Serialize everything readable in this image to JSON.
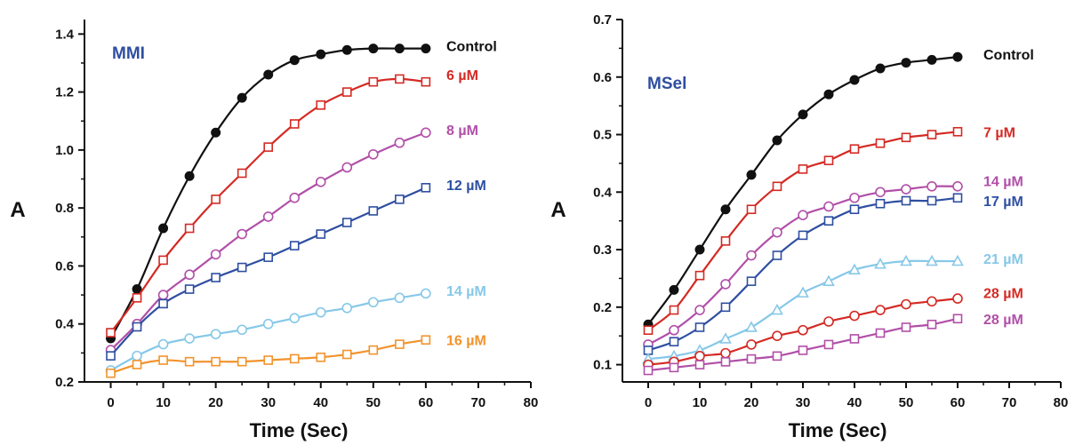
{
  "chart_data": [
    {
      "type": "line",
      "title": "",
      "panel_label": "MMI",
      "panel_label_color": "#2e4ea1",
      "xlabel": "Time (Sec)",
      "ylabel": "A",
      "xlim": [
        -5,
        80
      ],
      "ylim": [
        0.2,
        1.45
      ],
      "xticks": [
        0,
        10,
        20,
        30,
        40,
        50,
        60,
        70,
        80
      ],
      "yticks": [
        0.2,
        0.4,
        0.6,
        0.8,
        1.0,
        1.2,
        1.4
      ],
      "ytick_labels": [
        "0.2",
        "0.4",
        "0.6",
        "0.8",
        "1.0",
        "1.2",
        "1.4"
      ],
      "grid": false,
      "x": [
        0,
        5,
        10,
        15,
        20,
        25,
        30,
        35,
        40,
        45,
        50,
        55,
        60
      ],
      "series": [
        {
          "name": "Control",
          "color": "#111111",
          "marker": "filled-circle",
          "label_y": 1.36,
          "values": [
            0.35,
            0.52,
            0.73,
            0.91,
            1.06,
            1.18,
            1.26,
            1.31,
            1.33,
            1.345,
            1.35,
            1.35,
            1.35
          ]
        },
        {
          "name": "6 µM",
          "color": "#d42a24",
          "marker": "open-square",
          "label_y": 1.26,
          "values": [
            0.37,
            0.49,
            0.62,
            0.73,
            0.83,
            0.92,
            1.01,
            1.09,
            1.155,
            1.2,
            1.235,
            1.245,
            1.235
          ]
        },
        {
          "name": "8 µM",
          "color": "#b14fa8",
          "marker": "open-circle",
          "label_y": 1.07,
          "values": [
            0.31,
            0.4,
            0.5,
            0.57,
            0.64,
            0.71,
            0.77,
            0.835,
            0.89,
            0.94,
            0.985,
            1.025,
            1.06
          ]
        },
        {
          "name": "12 µM",
          "color": "#2e4ea1",
          "marker": "open-square",
          "label_y": 0.88,
          "values": [
            0.29,
            0.39,
            0.47,
            0.52,
            0.56,
            0.595,
            0.63,
            0.67,
            0.71,
            0.75,
            0.79,
            0.83,
            0.87
          ]
        },
        {
          "name": "14 µM",
          "color": "#86c8e8",
          "marker": "open-circle",
          "label_y": 0.515,
          "values": [
            0.24,
            0.29,
            0.33,
            0.35,
            0.365,
            0.38,
            0.4,
            0.42,
            0.44,
            0.455,
            0.475,
            0.49,
            0.505
          ]
        },
        {
          "name": "16 µM",
          "color": "#f2932c",
          "marker": "open-square",
          "label_y": 0.345,
          "values": [
            0.23,
            0.26,
            0.275,
            0.27,
            0.27,
            0.27,
            0.275,
            0.28,
            0.285,
            0.295,
            0.31,
            0.33,
            0.345
          ]
        }
      ]
    },
    {
      "type": "line",
      "title": "",
      "panel_label": "MSel",
      "panel_label_color": "#2e4ea1",
      "xlabel": "Time (Sec)",
      "ylabel": "A",
      "xlim": [
        -5,
        80
      ],
      "ylim": [
        0.07,
        0.7
      ],
      "xticks": [
        0,
        10,
        20,
        30,
        40,
        50,
        60,
        70,
        80
      ],
      "yticks": [
        0.1,
        0.2,
        0.3,
        0.4,
        0.5,
        0.6,
        0.7
      ],
      "ytick_labels": [
        "0.1",
        "0.2",
        "0.3",
        "0.4",
        "0.5",
        "0.6",
        "0.7"
      ],
      "grid": false,
      "x": [
        0,
        5,
        10,
        15,
        20,
        25,
        30,
        35,
        40,
        45,
        50,
        55,
        60
      ],
      "series": [
        {
          "name": "Control",
          "color": "#111111",
          "marker": "filled-circle",
          "label_y": 0.64,
          "values": [
            0.17,
            0.23,
            0.3,
            0.37,
            0.43,
            0.49,
            0.535,
            0.57,
            0.595,
            0.615,
            0.625,
            0.63,
            0.635
          ]
        },
        {
          "name": "7 µM",
          "color": "#d42a24",
          "marker": "open-square",
          "label_y": 0.505,
          "values": [
            0.16,
            0.195,
            0.255,
            0.315,
            0.37,
            0.41,
            0.44,
            0.455,
            0.475,
            0.485,
            0.495,
            0.5,
            0.505
          ]
        },
        {
          "name": "14 µM",
          "color": "#b14fa8",
          "marker": "open-circle",
          "label_y": 0.42,
          "values": [
            0.135,
            0.16,
            0.195,
            0.24,
            0.29,
            0.33,
            0.36,
            0.375,
            0.39,
            0.4,
            0.405,
            0.41,
            0.41
          ]
        },
        {
          "name": "17 µM",
          "color": "#2e4ea1",
          "marker": "open-square",
          "label_y": 0.385,
          "values": [
            0.125,
            0.14,
            0.165,
            0.2,
            0.245,
            0.29,
            0.325,
            0.35,
            0.37,
            0.38,
            0.385,
            0.385,
            0.39
          ]
        },
        {
          "name": "21 µM",
          "color": "#86c8e8",
          "marker": "open-triangle",
          "label_y": 0.285,
          "values": [
            0.11,
            0.115,
            0.125,
            0.145,
            0.165,
            0.195,
            0.225,
            0.245,
            0.265,
            0.275,
            0.28,
            0.28,
            0.28
          ]
        },
        {
          "name": "28 µM",
          "color": "#d42a24",
          "marker": "open-circle",
          "label_y": 0.225,
          "values": [
            0.1,
            0.105,
            0.115,
            0.12,
            0.135,
            0.15,
            0.16,
            0.175,
            0.185,
            0.195,
            0.205,
            0.21,
            0.215
          ]
        },
        {
          "name": "28 µM",
          "color": "#b14fa8",
          "marker": "open-square",
          "label_y": 0.18,
          "values": [
            0.09,
            0.095,
            0.1,
            0.105,
            0.11,
            0.115,
            0.125,
            0.135,
            0.145,
            0.155,
            0.165,
            0.17,
            0.18
          ]
        }
      ]
    }
  ]
}
